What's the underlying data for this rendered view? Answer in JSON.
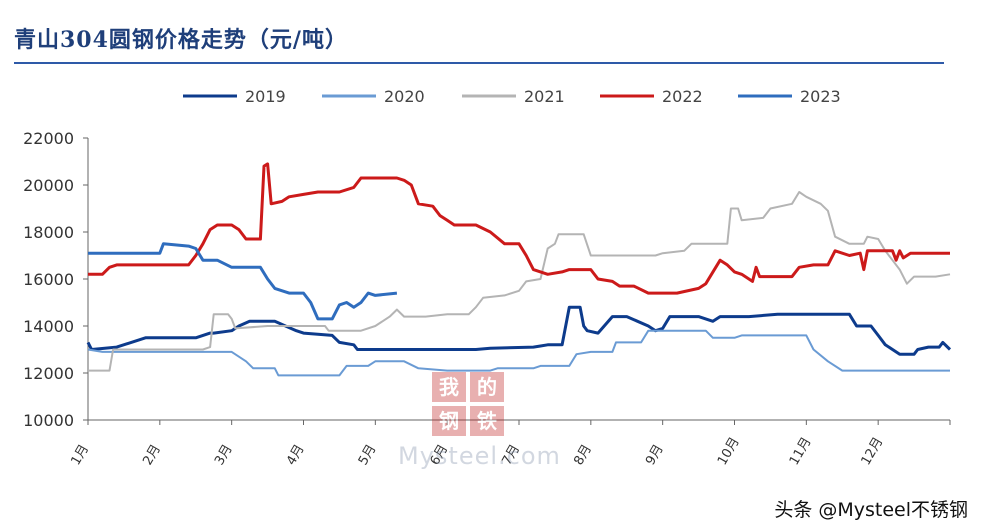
{
  "chart_data": {
    "type": "line",
    "title": "青山304圆钢价格走势（元/吨）",
    "xlabel": "",
    "ylabel": "",
    "ylim": [
      10000,
      22000
    ],
    "yticks": [
      10000,
      12000,
      14000,
      16000,
      18000,
      20000,
      22000
    ],
    "xlim": [
      0,
      12
    ],
    "month_labels": [
      "1月",
      "2月",
      "3月",
      "4月",
      "5月",
      "6月",
      "7月",
      "8月",
      "9月",
      "10月",
      "11月",
      "12月"
    ],
    "legend_position": "top",
    "series": [
      {
        "name": "2019",
        "color": "#0d3b8c",
        "points": [
          [
            0,
            13300
          ],
          [
            0.05,
            13000
          ],
          [
            0.4,
            13100
          ],
          [
            0.8,
            13500
          ],
          [
            1.5,
            13500
          ],
          [
            1.7,
            13700
          ],
          [
            1.75,
            13700
          ],
          [
            2.0,
            13800
          ],
          [
            2.1,
            14000
          ],
          [
            2.25,
            14200
          ],
          [
            2.6,
            14200
          ],
          [
            2.75,
            14000
          ],
          [
            2.9,
            13800
          ],
          [
            3.0,
            13700
          ],
          [
            3.4,
            13600
          ],
          [
            3.5,
            13300
          ],
          [
            3.7,
            13200
          ],
          [
            3.75,
            13000
          ],
          [
            4.5,
            13000
          ],
          [
            4.6,
            13000
          ],
          [
            5.4,
            13000
          ],
          [
            5.6,
            13050
          ],
          [
            6.2,
            13100
          ],
          [
            6.3,
            13150
          ],
          [
            6.4,
            13200
          ],
          [
            6.6,
            13200
          ],
          [
            6.7,
            14800
          ],
          [
            6.85,
            14800
          ],
          [
            6.9,
            14000
          ],
          [
            6.95,
            13800
          ],
          [
            7.1,
            13700
          ],
          [
            7.3,
            14400
          ],
          [
            7.5,
            14400
          ],
          [
            7.8,
            14000
          ],
          [
            7.9,
            13800
          ],
          [
            8.0,
            13900
          ],
          [
            8.1,
            14400
          ],
          [
            8.5,
            14400
          ],
          [
            8.7,
            14200
          ],
          [
            8.8,
            14400
          ],
          [
            9.2,
            14400
          ],
          [
            9.6,
            14500
          ],
          [
            10.6,
            14500
          ],
          [
            10.7,
            14000
          ],
          [
            10.9,
            14000
          ],
          [
            11.0,
            13600
          ],
          [
            11.1,
            13200
          ],
          [
            11.3,
            12800
          ],
          [
            11.5,
            12800
          ],
          [
            11.55,
            13000
          ],
          [
            11.7,
            13100
          ],
          [
            11.85,
            13100
          ],
          [
            11.9,
            13300
          ],
          [
            12.0,
            13000
          ]
        ]
      },
      {
        "name": "2020",
        "color": "#6a9bd4",
        "points": [
          [
            0,
            13000
          ],
          [
            0.2,
            12900
          ],
          [
            2.0,
            12900
          ],
          [
            2.2,
            12500
          ],
          [
            2.3,
            12200
          ],
          [
            2.6,
            12200
          ],
          [
            2.65,
            11900
          ],
          [
            3.5,
            11900
          ],
          [
            3.6,
            12300
          ],
          [
            3.9,
            12300
          ],
          [
            4.0,
            12500
          ],
          [
            4.4,
            12500
          ],
          [
            4.6,
            12200
          ],
          [
            5.0,
            12100
          ],
          [
            5.6,
            12100
          ],
          [
            5.7,
            12200
          ],
          [
            6.2,
            12200
          ],
          [
            6.3,
            12300
          ],
          [
            6.7,
            12300
          ],
          [
            6.8,
            12800
          ],
          [
            7.0,
            12900
          ],
          [
            7.3,
            12900
          ],
          [
            7.35,
            13300
          ],
          [
            7.7,
            13300
          ],
          [
            7.8,
            13800
          ],
          [
            8.6,
            13800
          ],
          [
            8.7,
            13500
          ],
          [
            9.0,
            13500
          ],
          [
            9.1,
            13600
          ],
          [
            10.0,
            13600
          ],
          [
            10.1,
            13000
          ],
          [
            10.3,
            12500
          ],
          [
            10.5,
            12100
          ],
          [
            12.0,
            12100
          ]
        ]
      },
      {
        "name": "2021",
        "color": "#b4b4b4",
        "points": [
          [
            0,
            12100
          ],
          [
            0.3,
            12100
          ],
          [
            0.35,
            13000
          ],
          [
            1.6,
            13000
          ],
          [
            1.7,
            13100
          ],
          [
            1.75,
            14500
          ],
          [
            1.95,
            14500
          ],
          [
            2.0,
            14300
          ],
          [
            2.05,
            13900
          ],
          [
            2.5,
            14000
          ],
          [
            3.3,
            14000
          ],
          [
            3.35,
            13800
          ],
          [
            3.8,
            13800
          ],
          [
            4.0,
            14000
          ],
          [
            4.2,
            14400
          ],
          [
            4.3,
            14700
          ],
          [
            4.4,
            14400
          ],
          [
            4.7,
            14400
          ],
          [
            5.0,
            14500
          ],
          [
            5.3,
            14500
          ],
          [
            5.4,
            14800
          ],
          [
            5.5,
            15200
          ],
          [
            5.8,
            15300
          ],
          [
            6.0,
            15500
          ],
          [
            6.1,
            15900
          ],
          [
            6.3,
            16000
          ],
          [
            6.4,
            17300
          ],
          [
            6.5,
            17500
          ],
          [
            6.55,
            17900
          ],
          [
            6.9,
            17900
          ],
          [
            7.0,
            17000
          ],
          [
            7.5,
            17000
          ],
          [
            7.9,
            17000
          ],
          [
            8.0,
            17100
          ],
          [
            8.3,
            17200
          ],
          [
            8.4,
            17500
          ],
          [
            8.9,
            17500
          ],
          [
            8.95,
            19000
          ],
          [
            9.05,
            19000
          ],
          [
            9.1,
            18500
          ],
          [
            9.4,
            18600
          ],
          [
            9.5,
            19000
          ],
          [
            9.8,
            19200
          ],
          [
            9.9,
            19700
          ],
          [
            10.0,
            19500
          ],
          [
            10.2,
            19200
          ],
          [
            10.3,
            18900
          ],
          [
            10.4,
            17800
          ],
          [
            10.6,
            17500
          ],
          [
            10.8,
            17500
          ],
          [
            10.85,
            17800
          ],
          [
            11.0,
            17700
          ],
          [
            11.1,
            17200
          ],
          [
            11.2,
            16800
          ],
          [
            11.3,
            16400
          ],
          [
            11.4,
            15800
          ],
          [
            11.5,
            16100
          ],
          [
            11.8,
            16100
          ],
          [
            12.0,
            16200
          ]
        ]
      },
      {
        "name": "2022",
        "color": "#cc1a1a",
        "points": [
          [
            0,
            16200
          ],
          [
            0.2,
            16200
          ],
          [
            0.3,
            16500
          ],
          [
            0.4,
            16600
          ],
          [
            1.3,
            16600
          ],
          [
            1.4,
            16600
          ],
          [
            1.5,
            17000
          ],
          [
            1.6,
            17500
          ],
          [
            1.7,
            18100
          ],
          [
            1.8,
            18300
          ],
          [
            2.0,
            18300
          ],
          [
            2.1,
            18100
          ],
          [
            2.2,
            17700
          ],
          [
            2.4,
            17700
          ],
          [
            2.45,
            20800
          ],
          [
            2.5,
            20900
          ],
          [
            2.55,
            19200
          ],
          [
            2.7,
            19300
          ],
          [
            2.8,
            19500
          ],
          [
            3.0,
            19600
          ],
          [
            3.2,
            19700
          ],
          [
            3.5,
            19700
          ],
          [
            3.7,
            19900
          ],
          [
            3.8,
            20300
          ],
          [
            4.3,
            20300
          ],
          [
            4.4,
            20200
          ],
          [
            4.5,
            20000
          ],
          [
            4.6,
            19200
          ],
          [
            4.8,
            19100
          ],
          [
            4.9,
            18700
          ],
          [
            5.0,
            18500
          ],
          [
            5.1,
            18300
          ],
          [
            5.4,
            18300
          ],
          [
            5.6,
            18000
          ],
          [
            5.8,
            17500
          ],
          [
            6.0,
            17500
          ],
          [
            6.1,
            17000
          ],
          [
            6.2,
            16400
          ],
          [
            6.4,
            16200
          ],
          [
            6.6,
            16300
          ],
          [
            6.7,
            16400
          ],
          [
            7.0,
            16400
          ],
          [
            7.1,
            16000
          ],
          [
            7.3,
            15900
          ],
          [
            7.4,
            15700
          ],
          [
            7.6,
            15700
          ],
          [
            7.8,
            15400
          ],
          [
            8.2,
            15400
          ],
          [
            8.5,
            15600
          ],
          [
            8.6,
            15800
          ],
          [
            8.8,
            16800
          ],
          [
            8.9,
            16600
          ],
          [
            9.0,
            16300
          ],
          [
            9.1,
            16200
          ],
          [
            9.25,
            15900
          ],
          [
            9.3,
            16500
          ],
          [
            9.35,
            16100
          ],
          [
            9.8,
            16100
          ],
          [
            9.9,
            16500
          ],
          [
            10.1,
            16600
          ],
          [
            10.3,
            16600
          ],
          [
            10.4,
            17200
          ],
          [
            10.6,
            17000
          ],
          [
            10.75,
            17100
          ],
          [
            10.8,
            16400
          ],
          [
            10.85,
            17200
          ],
          [
            11.2,
            17200
          ],
          [
            11.25,
            16800
          ],
          [
            11.3,
            17200
          ],
          [
            11.35,
            16900
          ],
          [
            11.45,
            17100
          ],
          [
            12.0,
            17100
          ]
        ]
      },
      {
        "name": "2023",
        "color": "#2f6dbe",
        "points": [
          [
            0,
            17100
          ],
          [
            1.0,
            17100
          ],
          [
            1.05,
            17500
          ],
          [
            1.4,
            17400
          ],
          [
            1.5,
            17300
          ],
          [
            1.6,
            16800
          ],
          [
            1.8,
            16800
          ],
          [
            2.0,
            16500
          ],
          [
            2.4,
            16500
          ],
          [
            2.5,
            16000
          ],
          [
            2.6,
            15600
          ],
          [
            2.8,
            15400
          ],
          [
            3.0,
            15400
          ],
          [
            3.1,
            15000
          ],
          [
            3.2,
            14300
          ],
          [
            3.4,
            14300
          ],
          [
            3.5,
            14900
          ],
          [
            3.6,
            15000
          ],
          [
            3.7,
            14800
          ],
          [
            3.8,
            15000
          ],
          [
            3.9,
            15400
          ],
          [
            4.0,
            15300
          ],
          [
            4.3,
            15400
          ]
        ]
      }
    ]
  },
  "watermark": {
    "cells": [
      "我",
      "的",
      "钢",
      "铁"
    ],
    "text": "Mysteel.com"
  },
  "footer": {
    "credit": "头条 @Mysteel不锈钢"
  }
}
